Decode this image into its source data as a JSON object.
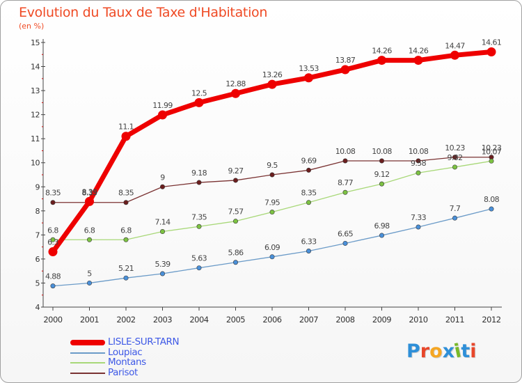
{
  "title": "Evolution du Taux de Taxe d'Habitation",
  "subtitle": "(en %)",
  "logo": {
    "text": "Proxiti",
    "letter_colors": [
      "#2e8fd8",
      "#e8462a",
      "#f5a623",
      "#2e8fd8",
      "#79b929",
      "#2e8fd8",
      "#e8462a"
    ]
  },
  "chart_data": {
    "type": "line",
    "x": [
      "2000",
      "2001",
      "2002",
      "2003",
      "2004",
      "2005",
      "2006",
      "2007",
      "2008",
      "2009",
      "2010",
      "2011",
      "2012"
    ],
    "ylim": [
      4,
      15
    ],
    "yticks": [
      "4",
      "5",
      "6",
      "7",
      "8",
      "9",
      "10",
      "11",
      "12",
      "13",
      "14",
      "15"
    ],
    "grid": false,
    "legend_position": "bottom-left",
    "series": [
      {
        "name": "LISLE-SUR-TARN",
        "color": "#ee0000",
        "marker_color": "#ee0000",
        "values": [
          6.3,
          8.39,
          11.1,
          11.99,
          12.5,
          12.88,
          13.26,
          13.53,
          13.87,
          14.26,
          14.26,
          14.47,
          14.61
        ],
        "labels": [
          "6.3",
          "8.39",
          "11.1",
          "11.99",
          "12.5",
          "12.88",
          "13.26",
          "13.53",
          "13.87",
          "14.26",
          "14.26",
          "14.47",
          "14.61"
        ]
      },
      {
        "name": "Loupiac",
        "color": "#6b9bc8",
        "marker_color": "#4a90d9",
        "values": [
          4.88,
          5,
          5.21,
          5.39,
          5.63,
          5.86,
          6.09,
          6.33,
          6.65,
          6.98,
          7.33,
          7.7,
          8.08
        ],
        "labels": [
          "4.88",
          "5",
          "5.21",
          "5.39",
          "5.63",
          "5.86",
          "6.09",
          "6.33",
          "6.65",
          "6.98",
          "7.33",
          "7.7",
          "8.08"
        ]
      },
      {
        "name": "Montans",
        "color": "#a8d878",
        "marker_color": "#7cc242",
        "values": [
          6.8,
          6.8,
          6.8,
          7.14,
          7.35,
          7.57,
          7.95,
          8.35,
          8.77,
          9.12,
          9.58,
          9.82,
          10.07
        ],
        "labels": [
          "6.8",
          "6.8",
          "6.8",
          "7.14",
          "7.35",
          "7.57",
          "7.95",
          "8.35",
          "8.77",
          "9.12",
          "9.58",
          "9.82",
          "10.07"
        ]
      },
      {
        "name": "Parisot",
        "color": "#7a3232",
        "marker_color": "#6b1e1e",
        "values": [
          8.35,
          8.35,
          8.35,
          9,
          9.18,
          9.27,
          9.5,
          9.69,
          10.08,
          10.08,
          10.08,
          10.23,
          10.23
        ],
        "labels": [
          "8.35",
          "8.35",
          "8.35",
          "9",
          "9.18",
          "9.27",
          "9.5",
          "9.69",
          "10.08",
          "10.08",
          "10.08",
          "10.23",
          "10.23"
        ]
      }
    ]
  }
}
